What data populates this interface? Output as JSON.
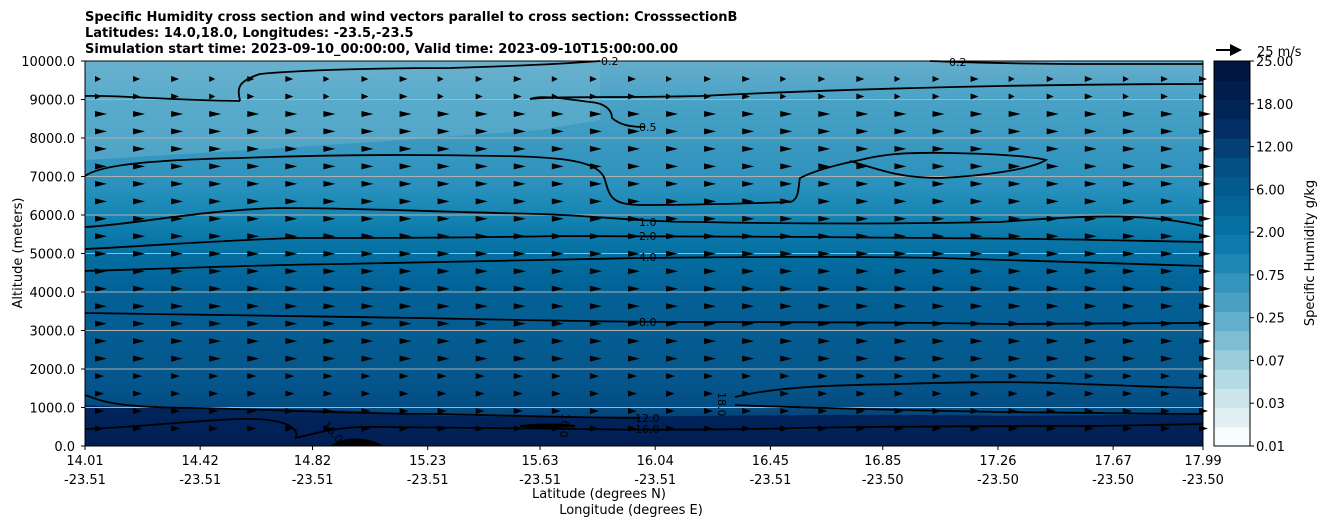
{
  "chart_data": {
    "type": "contour",
    "title_lines": [
      "Specific Humidity cross section and wind vectors parallel to cross section: CrosssectionB",
      "Latitudes: 14.0,18.0, Longitudes: -23.5,-23.5",
      "Simulation start time: 2023-09-10_00:00:00, Valid time: 2023-09-10T15:00:00.00"
    ],
    "ylabel": "Altitude (meters)",
    "xlabel_lines": [
      "Latitude (degrees N)",
      "Longitude (degrees E)"
    ],
    "ylim": [
      0,
      10000
    ],
    "yticks": [
      "0.0",
      "1000.0",
      "2000.0",
      "3000.0",
      "4000.0",
      "5000.0",
      "6000.0",
      "7000.0",
      "8000.0",
      "9000.0",
      "10000.0"
    ],
    "ytick_values": [
      0,
      1000,
      2000,
      3000,
      4000,
      5000,
      6000,
      7000,
      8000,
      9000,
      10000
    ],
    "xticks_lat": [
      "14.01",
      "14.42",
      "14.82",
      "15.23",
      "15.63",
      "16.04",
      "16.45",
      "16.85",
      "17.26",
      "17.67",
      "17.99"
    ],
    "xticks_lon": [
      "-23.51",
      "-23.51",
      "-23.51",
      "-23.51",
      "-23.51",
      "-23.51",
      "-23.51",
      "-23.50",
      "-23.50",
      "-23.50",
      "-23.50"
    ],
    "xlim": [
      14.01,
      17.99
    ],
    "colorbar": {
      "label": "Specific Humidity g/kg",
      "ticks": [
        "0.01",
        "0.03",
        "0.07",
        "0.25",
        "0.75",
        "2.00",
        "6.00",
        "12.00",
        "18.00",
        "25.00"
      ],
      "band_colors": [
        "#f7fcfd",
        "#e2f0f3",
        "#cde6ec",
        "#b4dae5",
        "#99cddc",
        "#7dbed3",
        "#62afcb",
        "#49a0c2",
        "#3394bc",
        "#1f87b5",
        "#0f79ad",
        "#0770a3",
        "#046498",
        "#035a8e",
        "#044f84",
        "#043f76",
        "#032f66",
        "#022558",
        "#011d4d",
        "#001540"
      ]
    },
    "contour_lines": [
      {
        "level": "0.2",
        "y_m": 9950
      },
      {
        "level": "0.5",
        "y_m": 8150
      },
      {
        "level": "1.0",
        "y_m": 5800
      },
      {
        "level": "2.0",
        "y_m": 5450
      },
      {
        "level": "4.0",
        "y_m": 4900
      },
      {
        "level": "8.0",
        "y_m": 3150
      },
      {
        "level": "12.0",
        "y_m": 730
      },
      {
        "level": "16.0",
        "y_m": 420
      }
    ],
    "extra_contour_labels": [
      "18.0",
      "16.0",
      "16.0"
    ],
    "quiver_key": "25 m/s"
  }
}
